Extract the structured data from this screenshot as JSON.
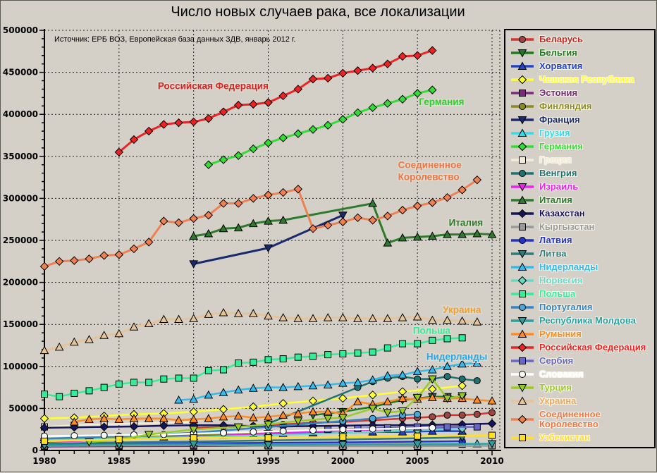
{
  "title": "Число новых случаев рака, все локализации",
  "source": "Источник: ЕРБ ВОЗ, Европейская база данных ЗДВ, январь 2012 г.",
  "background_color": "#D4D0C8",
  "chart_data": {
    "type": "line",
    "title": "Число новых случаев рака, все локализации",
    "xlabel": "",
    "ylabel": "",
    "x_axis": {
      "min": 1980,
      "max": 2010,
      "major_step": 5,
      "minor_step": 1
    },
    "y_axis": {
      "min": 0,
      "max": 500000,
      "major_step": 50000,
      "minor_step": 10000
    },
    "grid": "dotted",
    "legend_position": "right",
    "annotations": [
      {
        "text": "Российская Федерация",
        "color": "#DD2222",
        "x": 1987.6,
        "y": 430000
      },
      {
        "text": "Германия",
        "color": "#33CC33",
        "x": 2005.1,
        "y": 411000
      },
      {
        "text": "Соединенное\nКоролевство",
        "color": "#EE7744",
        "x": 2003.7,
        "y": 336000
      },
      {
        "text": "Италия",
        "color": "#2E7B2E",
        "x": 2007.1,
        "y": 267000
      },
      {
        "text": "Украина",
        "color": "#F0A030",
        "x": 2006.7,
        "y": 163500
      },
      {
        "text": "Польша",
        "color": "#33EE99",
        "x": 2004.7,
        "y": 139000
      },
      {
        "text": "Нидерланды",
        "color": "#22AAEE",
        "x": 2005.6,
        "y": 108000
      }
    ],
    "series": [
      {
        "name": "Беларусь",
        "color": "#D93030",
        "label_color": "#CC2222",
        "marker": "circle",
        "marker_fill": "#9E4444",
        "x": [
          1990,
          1992,
          1994,
          1996,
          1998,
          2000,
          2002,
          2004,
          2005,
          2006,
          2007,
          2008,
          2009,
          2010
        ],
        "y": [
          27000,
          28000,
          29000,
          31000,
          33000,
          34000,
          36000,
          38000,
          39000,
          40000,
          42000,
          42000,
          43000,
          45000
        ]
      },
      {
        "name": "Бельгия",
        "color": "#1E7B1E",
        "marker": "triangle-down",
        "x": [
          1998,
          2000,
          2002,
          2004,
          2005,
          2006,
          2007,
          2008
        ],
        "y": [
          42000,
          46000,
          52000,
          60000,
          62000,
          64000,
          64000,
          63000
        ]
      },
      {
        "name": "Хорватия",
        "color": "#2244CC",
        "marker": "triangle-up",
        "x": [
          1988,
          1990,
          1992,
          1994,
          1996,
          1998,
          2000,
          2002,
          2004,
          2006,
          2008
        ],
        "y": [
          16000,
          17000,
          18000,
          19000,
          20000,
          21000,
          21000,
          22000,
          22000,
          23000,
          23000
        ]
      },
      {
        "name": "Чешская Республика",
        "color": "#FFFF33",
        "marker": "diamond",
        "x": [
          1980,
          1982,
          1984,
          1986,
          1988,
          1990,
          1992,
          1994,
          1996,
          1998,
          2000,
          2002,
          2004,
          2006,
          2008
        ],
        "y": [
          38000,
          39000,
          41000,
          43000,
          44000,
          46000,
          49000,
          52000,
          56000,
          59000,
          62000,
          66000,
          70000,
          73000,
          77000
        ]
      },
      {
        "name": "Эстония",
        "color": "#7A2A7A",
        "marker": "square",
        "x": [
          1980,
          1985,
          1990,
          1995,
          2000,
          2005,
          2008
        ],
        "y": [
          4500,
          5000,
          5200,
          5600,
          6000,
          6800,
          7400
        ]
      },
      {
        "name": "Финляндия",
        "color": "#8B8B22",
        "marker": "circle",
        "x": [
          1980,
          1985,
          1990,
          1995,
          2000,
          2005,
          2008
        ],
        "y": [
          14000,
          16000,
          19000,
          21000,
          24000,
          26000,
          29000
        ]
      },
      {
        "name": "Франция",
        "color": "#1A2A6E",
        "marker": "triangle-down",
        "x": [
          1990,
          1995,
          2000
        ],
        "y": [
          222000,
          241000,
          280000
        ]
      },
      {
        "name": "Грузия",
        "color": "#33DDEE",
        "marker": "triangle-up",
        "x": [
          1980,
          1985,
          1990,
          1995,
          2000,
          2005,
          2009
        ],
        "y": [
          7000,
          8000,
          9000,
          6500,
          6500,
          7500,
          8000
        ]
      },
      {
        "name": "Германия",
        "color": "#33DD33",
        "marker": "diamond",
        "x": [
          1991,
          1992,
          1993,
          1994,
          1995,
          1996,
          1997,
          1998,
          1999,
          2000,
          2001,
          2002,
          2003,
          2004,
          2005,
          2006
        ],
        "y": [
          340000,
          346000,
          351000,
          359000,
          366000,
          372000,
          377000,
          382000,
          387000,
          394000,
          402000,
          408000,
          413000,
          418000,
          425000,
          429000
        ]
      },
      {
        "name": "Греция",
        "color": "#F2EDD7",
        "marker": "square",
        "x": [
          1980,
          1982,
          1984,
          1986,
          1988,
          1990
        ],
        "y": [
          28000,
          30000,
          31000,
          32000,
          33000,
          34000
        ]
      },
      {
        "name": "Венгрия",
        "color": "#1D7373",
        "marker": "circle",
        "x": [
          1995,
          2001,
          2002,
          2003,
          2004,
          2005,
          2006,
          2007,
          2008,
          2009
        ],
        "y": [
          32000,
          75000,
          82000,
          86000,
          88000,
          85000,
          85000,
          88000,
          85000,
          83000
        ]
      },
      {
        "name": "Израиль",
        "color": "#EE22EE",
        "marker": "triangle-down",
        "x": [
          1980,
          1985,
          1990,
          1995,
          2000,
          2005,
          2008
        ],
        "y": [
          10000,
          13000,
          16000,
          20000,
          24000,
          26000,
          28000
        ]
      },
      {
        "name": "Италия",
        "color": "#2E7B2E",
        "marker": "triangle-up",
        "x": [
          1990,
          1991,
          1992,
          1993,
          1994,
          1995,
          1996,
          2002,
          2003,
          2004,
          2005,
          2006,
          2007,
          2008,
          2009,
          2010
        ],
        "y": [
          255000,
          258000,
          264000,
          265000,
          270000,
          273000,
          274000,
          294000,
          247000,
          253000,
          254000,
          255000,
          257000,
          257000,
          258000,
          257000
        ]
      },
      {
        "name": "Казахстан",
        "color": "#15155E",
        "marker": "diamond",
        "x": [
          1980,
          1982,
          1984,
          1986,
          1988,
          1990,
          1992,
          1994,
          1996,
          1998,
          2000,
          2002,
          2004,
          2006,
          2008,
          2010
        ],
        "y": [
          27000,
          27500,
          28000,
          28500,
          29500,
          30000,
          30000,
          29000,
          28500,
          29000,
          29500,
          30000,
          30000,
          30500,
          31000,
          32000
        ]
      },
      {
        "name": "Кыргызстан",
        "color": "#999999",
        "marker": "square",
        "x": [
          1980,
          1985,
          1990,
          1995,
          2000,
          2005,
          2010
        ],
        "y": [
          5500,
          6000,
          6500,
          5500,
          5000,
          5000,
          5500
        ]
      },
      {
        "name": "Латвия",
        "color": "#2233CC",
        "marker": "circle",
        "x": [
          1980,
          1985,
          1990,
          1995,
          2000,
          2005,
          2008
        ],
        "y": [
          7000,
          8000,
          8500,
          9000,
          9500,
          10500,
          11000
        ]
      },
      {
        "name": "Литва",
        "color": "#2E7B7B",
        "marker": "triangle-down",
        "x": [
          1980,
          1985,
          1990,
          1995,
          2000,
          2005,
          2008
        ],
        "y": [
          8000,
          9500,
          10500,
          12000,
          13000,
          14500,
          15500
        ]
      },
      {
        "name": "Нидерланды",
        "color": "#33BBEE",
        "marker": "triangle-up",
        "x": [
          1989,
          1990,
          1991,
          1992,
          1993,
          1994,
          1995,
          1996,
          1997,
          1998,
          1999,
          2000,
          2001,
          2002,
          2003,
          2004,
          2005,
          2006,
          2007,
          2008,
          2009
        ],
        "y": [
          60000,
          61000,
          66000,
          69000,
          72000,
          74000,
          75000,
          75000,
          76000,
          77000,
          78000,
          80000,
          81000,
          84000,
          89000,
          90000,
          94000,
          96000,
          100000,
          103000,
          104000
        ]
      },
      {
        "name": "Норвегия",
        "color": "#66D9C4",
        "marker": "diamond",
        "x": [
          1980,
          1985,
          1990,
          1995,
          2000,
          2005,
          2008
        ],
        "y": [
          12000,
          14000,
          16000,
          18000,
          21000,
          24000,
          26000
        ]
      },
      {
        "name": "Польша",
        "color": "#33EE99",
        "marker": "square",
        "x": [
          1980,
          1981,
          1982,
          1983,
          1984,
          1985,
          1986,
          1987,
          1988,
          1989,
          1990,
          1991,
          1992,
          1993,
          1994,
          1995,
          1996,
          1997,
          1998,
          1999,
          2000,
          2001,
          2002,
          2003,
          2004,
          2005,
          2006,
          2007,
          2008
        ],
        "y": [
          67000,
          64000,
          68000,
          71000,
          75000,
          79000,
          81000,
          81000,
          85000,
          86000,
          86000,
          95000,
          96000,
          104000,
          105000,
          108000,
          109000,
          111000,
          112000,
          114000,
          115000,
          116000,
          117000,
          122000,
          127000,
          127000,
          131000,
          133000,
          134000
        ]
      },
      {
        "name": "Португалия",
        "color": "#2E86C8",
        "marker": "circle",
        "marker_fill": "#44AADD",
        "x": [
          1980,
          1985,
          1990,
          1995,
          2000,
          2002,
          2004,
          2005
        ],
        "y": [
          14000,
          17000,
          21000,
          28000,
          35000,
          38000,
          42000,
          43000
        ]
      },
      {
        "name": "Республика Молдова",
        "color": "#2AA0A0",
        "marker": "triangle-down",
        "x": [
          1980,
          1985,
          1990,
          1995,
          2000,
          2005,
          2010
        ],
        "y": [
          6000,
          7000,
          7500,
          6500,
          7000,
          7500,
          8000
        ]
      },
      {
        "name": "Румыния",
        "color": "#FF8C22",
        "marker": "triangle-up",
        "x": [
          1982,
          1983,
          1984,
          1985,
          1986,
          1987,
          1988,
          1989,
          1990,
          1991,
          1992,
          1993,
          1994,
          1995,
          1996,
          1997,
          1998,
          1999,
          2000,
          2001,
          2002,
          2003,
          2004,
          2005,
          2006,
          2007,
          2008,
          2009,
          2010
        ],
        "y": [
          34000,
          37000,
          38000,
          37000,
          38000,
          38000,
          38000,
          36000,
          37000,
          38000,
          40000,
          41000,
          39000,
          40000,
          42000,
          44000,
          46000,
          46000,
          44000,
          58000,
          55000,
          58000,
          62000,
          61000,
          63000,
          62000,
          62000,
          60000,
          59000
        ]
      },
      {
        "name": "Российская Федерация",
        "color": "#EE2222",
        "marker": "diamond",
        "x": [
          1985,
          1986,
          1987,
          1988,
          1989,
          1990,
          1991,
          1992,
          1993,
          1994,
          1995,
          1996,
          1997,
          1998,
          1999,
          2000,
          2001,
          2002,
          2003,
          2004,
          2005,
          2006
        ],
        "y": [
          355000,
          370000,
          380000,
          388000,
          390000,
          391000,
          395000,
          403000,
          411000,
          412000,
          414000,
          422000,
          430000,
          442000,
          443000,
          449000,
          452000,
          455000,
          460000,
          469000,
          470000,
          476000
        ]
      },
      {
        "name": "Сербия",
        "color": "#6666CC",
        "marker": "square",
        "x": [
          1999,
          2001,
          2003,
          2005,
          2007,
          2009
        ],
        "y": [
          25000,
          26000,
          27000,
          28000,
          28000,
          28000
        ]
      },
      {
        "name": "Словакия",
        "color": "#FFFFFF",
        "marker": "circle",
        "x": [
          1980,
          1982,
          1984,
          1986,
          1988,
          1990,
          1992,
          1994,
          1996,
          1998,
          2000,
          2002,
          2004,
          2006
        ],
        "y": [
          17000,
          17500,
          18000,
          18500,
          19000,
          20000,
          21000,
          22000,
          23000,
          24000,
          25000,
          25500,
          26000,
          27000
        ]
      },
      {
        "name": "Турция",
        "color": "#99CC22",
        "marker": "triangle-down",
        "x": [
          1983,
          1985,
          1987,
          1990,
          1993,
          1995,
          1997,
          1999,
          2000,
          2002,
          2003,
          2004,
          2005,
          2006,
          2007,
          2008
        ],
        "y": [
          10000,
          13000,
          19000,
          25000,
          28000,
          31000,
          35000,
          38000,
          39000,
          50000,
          45000,
          47000,
          63000,
          85000,
          62000,
          65000
        ]
      },
      {
        "name": "Украина",
        "color": "#E6C49A",
        "label_color": "#E8A860",
        "marker": "triangle-up",
        "x": [
          1980,
          1981,
          1982,
          1983,
          1984,
          1985,
          1986,
          1987,
          1988,
          1989,
          1990,
          1991,
          1992,
          1993,
          1994,
          1995,
          1996,
          1997,
          1998,
          1999,
          2000,
          2001,
          2002,
          2003,
          2004,
          2005,
          2006,
          2007,
          2008,
          2009
        ],
        "y": [
          119000,
          123000,
          129000,
          132000,
          137000,
          139000,
          147000,
          151000,
          156000,
          156000,
          157000,
          162000,
          164000,
          163000,
          163000,
          160000,
          158000,
          157000,
          157000,
          158000,
          158000,
          157000,
          157000,
          157000,
          158000,
          159000,
          155000,
          155000,
          154000,
          153000
        ]
      },
      {
        "name": "Соединенное Королевство",
        "color": "#F08050",
        "label_color": "#EE7744",
        "marker": "diamond",
        "x": [
          1980,
          1981,
          1982,
          1983,
          1984,
          1985,
          1986,
          1987,
          1988,
          1989,
          1990,
          1991,
          1992,
          1993,
          1994,
          1995,
          1996,
          1997,
          1998,
          1999,
          2000,
          2001,
          2002,
          2003,
          2004,
          2005,
          2006,
          2007,
          2008,
          2009
        ],
        "y": [
          219000,
          225000,
          226000,
          228000,
          232000,
          233000,
          240000,
          248000,
          273000,
          271000,
          276000,
          280000,
          294000,
          294000,
          300000,
          304000,
          307000,
          311000,
          264000,
          268000,
          272000,
          277000,
          274000,
          279000,
          286000,
          291000,
          295000,
          301000,
          310000,
          322000
        ]
      },
      {
        "name": "Узбекистан",
        "color": "#FFE022",
        "label_color": "#FFDD33",
        "marker": "square",
        "x": [
          1980,
          1985,
          1990,
          1995,
          2000,
          2005,
          2010
        ],
        "y": [
          11000,
          13000,
          15000,
          15000,
          16000,
          17000,
          18000
        ]
      }
    ]
  }
}
